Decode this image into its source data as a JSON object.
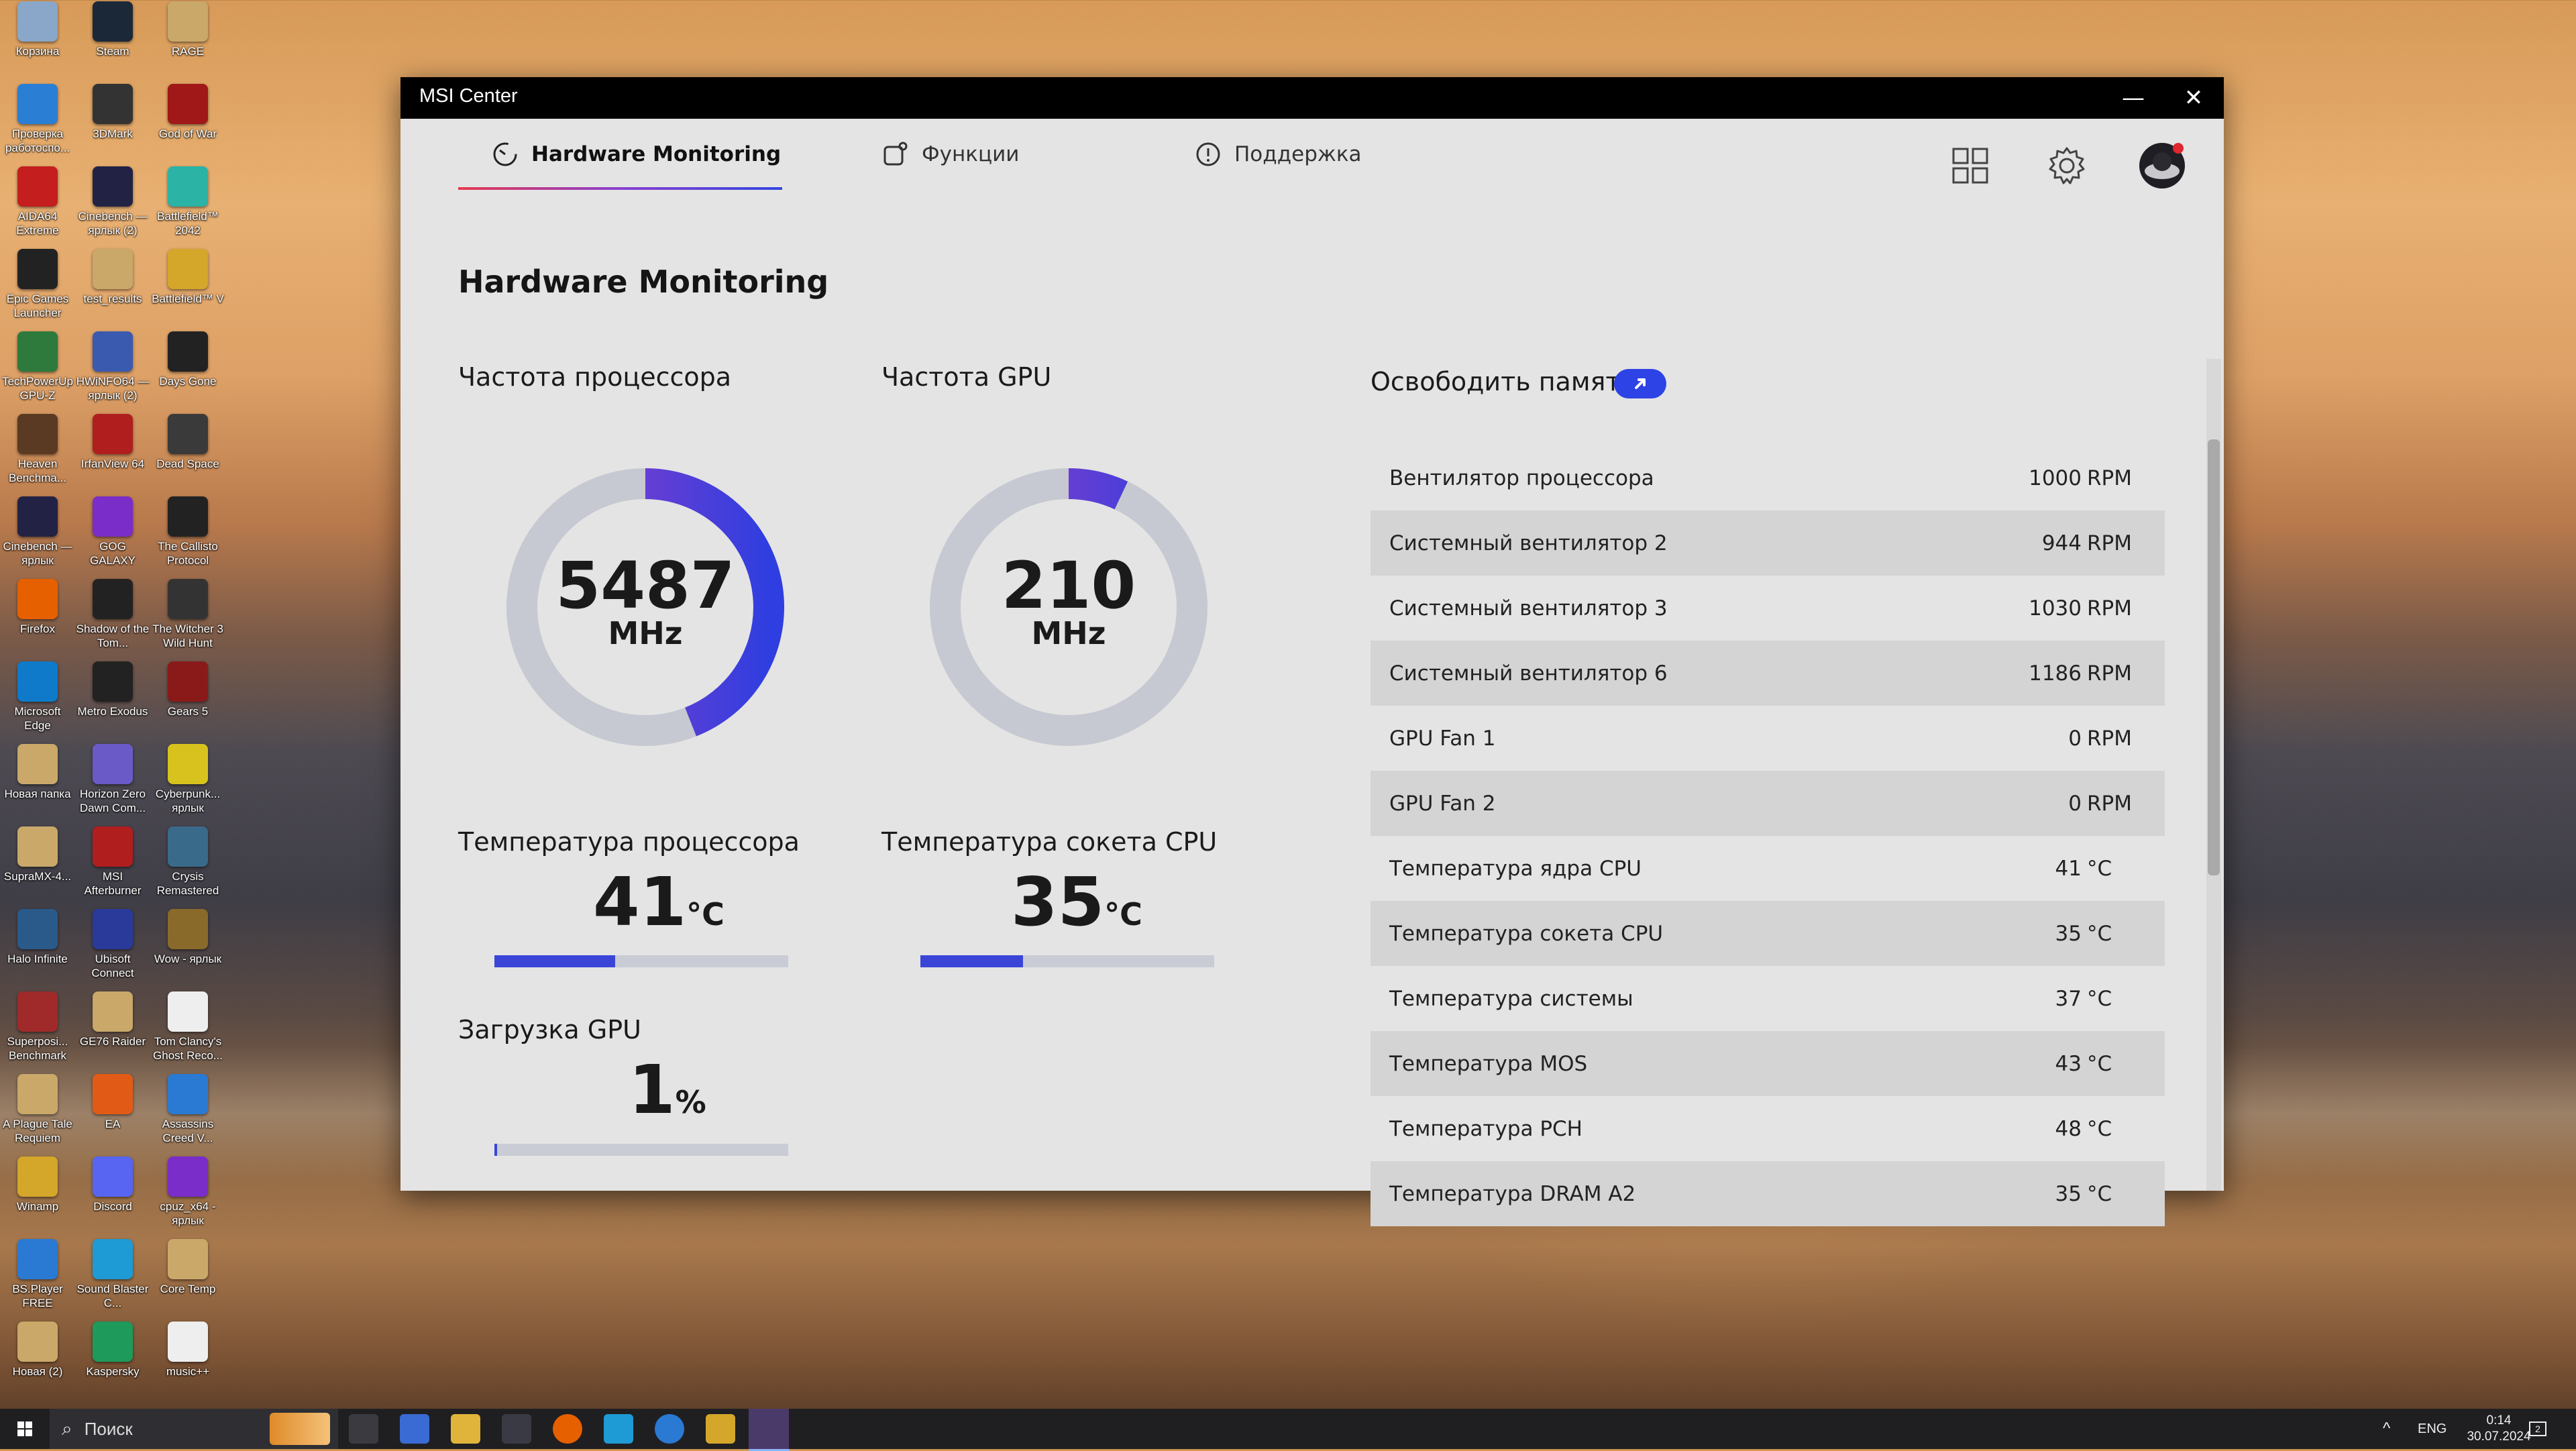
{
  "desktop": {
    "icons": [
      {
        "label": "Корзина",
        "color": "#8aa6c8"
      },
      {
        "label": "Steam",
        "color": "#1b2838"
      },
      {
        "label": "RAGE",
        "color": "#c9a86a"
      },
      {
        "label": "Проверка работоспо...",
        "color": "#2a7fd4"
      },
      {
        "label": "3DMark",
        "color": "#333"
      },
      {
        "label": "God of War",
        "color": "#a01818"
      },
      {
        "label": "AIDA64 Extreme",
        "color": "#c41e1e"
      },
      {
        "label": "Cinebench — ярлык (2)",
        "color": "#224"
      },
      {
        "label": "Battlefield™ 2042",
        "color": "#2bb3a6"
      },
      {
        "label": "Epic Games Launcher",
        "color": "#222"
      },
      {
        "label": "test_results",
        "color": "#c9a86a"
      },
      {
        "label": "Battlefield™ V",
        "color": "#d4a62a"
      },
      {
        "label": "TechPowerUp GPU-Z",
        "color": "#2d7a3c"
      },
      {
        "label": "HWiNFO64 — ярлык (2)",
        "color": "#3a5ab0"
      },
      {
        "label": "Days Gone",
        "color": "#222"
      },
      {
        "label": "Heaven Benchma...",
        "color": "#5a3a22"
      },
      {
        "label": "IrfanView 64",
        "color": "#b01e1e"
      },
      {
        "label": "Dead Space",
        "color": "#3a3a3a"
      },
      {
        "label": "Cinebench — ярлык",
        "color": "#224"
      },
      {
        "label": "GOG GALAXY",
        "color": "#7a2dc8"
      },
      {
        "label": "The Callisto Protocol",
        "color": "#222"
      },
      {
        "label": "Firefox",
        "color": "#e66000"
      },
      {
        "label": "Shadow of the Tom...",
        "color": "#222"
      },
      {
        "label": "The Witcher 3 Wild Hunt",
        "color": "#333"
      },
      {
        "label": "Microsoft Edge",
        "color": "#0e7ac9"
      },
      {
        "label": "Metro Exodus",
        "color": "#222"
      },
      {
        "label": "Gears 5",
        "color": "#8a1a1a"
      },
      {
        "label": "Новая папка",
        "color": "#c9a86a"
      },
      {
        "label": "Horizon Zero Dawn Com...",
        "color": "#6a5ac8"
      },
      {
        "label": "Cyberpunk... ярлык",
        "color": "#d8c21e"
      },
      {
        "label": "SupraMX-4...",
        "color": "#c9a86a"
      },
      {
        "label": "MSI Afterburner",
        "color": "#b01e1e"
      },
      {
        "label": "Crysis Remastered",
        "color": "#3a6a8a"
      },
      {
        "label": "Halo Infinite",
        "color": "#2a5a8a"
      },
      {
        "label": "Ubisoft Connect",
        "color": "#2a3a9a"
      },
      {
        "label": "Wow - ярлык",
        "color": "#8a6a2a"
      },
      {
        "label": "Superposi... Benchmark",
        "color": "#a02a2a"
      },
      {
        "label": "GE76 Raider",
        "color": "#c9a86a"
      },
      {
        "label": "Tom Clancy's Ghost Reco...",
        "color": "#eeeeee"
      },
      {
        "label": "A Plague Tale Requiem",
        "color": "#c9a86a"
      },
      {
        "label": "EA",
        "color": "#e25b16"
      },
      {
        "label": "Assassins Creed V...",
        "color": "#2a7ad4"
      },
      {
        "label": "Winamp",
        "color": "#d4a62a"
      },
      {
        "label": "Discord",
        "color": "#5865f2"
      },
      {
        "label": "cpuz_x64 - ярлык",
        "color": "#7a2dc8"
      },
      {
        "label": "BS.Player FREE",
        "color": "#2a7ad4"
      },
      {
        "label": "Sound Blaster C...",
        "color": "#1e9ad4"
      },
      {
        "label": "Core Temp",
        "color": "#c9a86a"
      },
      {
        "label": "Новая (2)",
        "color": "#c9a86a"
      },
      {
        "label": "Kaspersky",
        "color": "#1e9a5a"
      },
      {
        "label": "music++",
        "color": "#eeeeee"
      }
    ]
  },
  "window": {
    "title": "MSI Center",
    "minimize": "—",
    "close": "✕"
  },
  "nav": {
    "tabs": [
      {
        "label": "Hardware Monitoring",
        "active": true
      },
      {
        "label": "Функции",
        "active": false
      },
      {
        "label": "Поддержка",
        "active": false
      }
    ]
  },
  "main": {
    "page_title": "Hardware Monitoring",
    "cpu_freq": {
      "label": "Частота процессора",
      "value": "5487",
      "unit": "MHz",
      "fill": 0.44
    },
    "gpu_freq": {
      "label": "Частота GPU",
      "value": "210",
      "unit": "MHz",
      "fill": 0.07
    },
    "cpu_temp": {
      "label": "Температура процессора",
      "value": "41",
      "unit": "°C",
      "fill": 0.41
    },
    "cpu_socket_temp": {
      "label": "Температура сокета CPU",
      "value": "35",
      "unit": "°C",
      "fill": 0.35
    },
    "gpu_load": {
      "label": "Загрузка GPU",
      "value": "1",
      "unit": "%",
      "fill": 0.01
    }
  },
  "sensors": {
    "free_memory_label": "Освободить память",
    "rows": [
      {
        "name": "Вентилятор процессора",
        "value": "1000",
        "unit": "RPM"
      },
      {
        "name": "Системный вентилятор 2",
        "value": "944",
        "unit": "RPM"
      },
      {
        "name": "Системный вентилятор 3",
        "value": "1030",
        "unit": "RPM"
      },
      {
        "name": "Системный вентилятор 6",
        "value": "1186",
        "unit": "RPM"
      },
      {
        "name": "GPU Fan 1",
        "value": "0",
        "unit": "RPM"
      },
      {
        "name": "GPU Fan 2",
        "value": "0",
        "unit": "RPM"
      },
      {
        "name": "Температура ядра CPU",
        "value": "41",
        "unit": "°C"
      },
      {
        "name": "Температура сокета CPU",
        "value": "35",
        "unit": "°C"
      },
      {
        "name": "Температура системы",
        "value": "37",
        "unit": "°C"
      },
      {
        "name": "Температура MOS",
        "value": "43",
        "unit": "°C"
      },
      {
        "name": "Температура PCH",
        "value": "48",
        "unit": "°C"
      },
      {
        "name": "Температура DRAM A2",
        "value": "35",
        "unit": "°C"
      }
    ]
  },
  "taskbar": {
    "search_placeholder": "Поиск",
    "language": "ENG",
    "time": "0:14",
    "date": "30.07.2024",
    "notification_count": "2"
  },
  "colors": {
    "accent": "#3a45d8",
    "ring_track": "#c6c9d1",
    "ring_start": "#9c3fc6",
    "ring_end": "#2f3ee0"
  }
}
